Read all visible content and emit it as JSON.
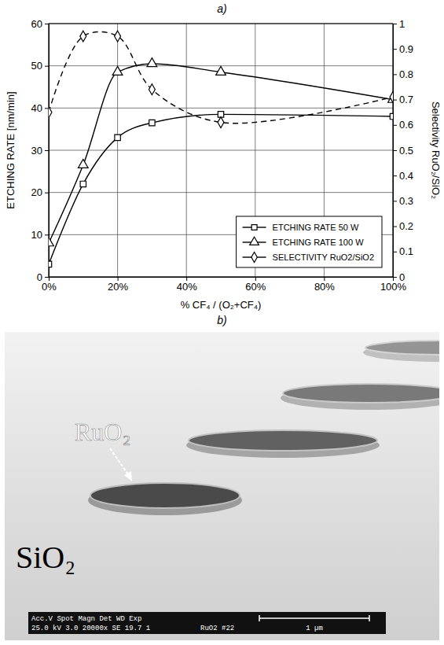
{
  "panel_labels": [
    "a)",
    "b)"
  ],
  "chart_data": {
    "type": "line",
    "x_label": "% CF₄ / (O₂+CF₄)",
    "y_label": "ETCHING RATE [nm/min]",
    "y2_label": "Selectivity RuO₂/SiO₂",
    "x": [
      0,
      10,
      20,
      30,
      50,
      100
    ],
    "xlim": [
      0,
      100
    ],
    "xticks": [
      {
        "value": 0,
        "label": "0%"
      },
      {
        "value": 20,
        "label": "20%"
      },
      {
        "value": 40,
        "label": "40%"
      },
      {
        "value": 60,
        "label": "60%"
      },
      {
        "value": 80,
        "label": "80%"
      },
      {
        "value": 100,
        "label": "100%"
      }
    ],
    "ylim": [
      0,
      60
    ],
    "yticks": [
      0,
      10,
      20,
      30,
      40,
      50,
      60
    ],
    "y2lim": [
      0,
      1
    ],
    "y2ticks": [
      0,
      0.1,
      0.2,
      0.3,
      0.4,
      0.5,
      0.6,
      0.7,
      0.8,
      0.9,
      1
    ],
    "grid": true,
    "legend": "lower right",
    "series": [
      {
        "name": "ETCHING RATE 50 W",
        "color": "#000000",
        "marker": "square",
        "line_style": "solid",
        "values": [
          3,
          22,
          33,
          36.5,
          38.5,
          38
        ]
      },
      {
        "name": "ETCHING RATE 100 W",
        "color": "#000000",
        "marker": "triangle",
        "line_style": "solid",
        "values": [
          8,
          26.5,
          48.5,
          50.5,
          48.5,
          42
        ]
      },
      {
        "name": "SELECTIVITY RuO2/SiO2",
        "color": "#000000",
        "marker": "diamond",
        "line_style": "dashed",
        "axis": "y2",
        "values": [
          0.65,
          0.95,
          0.95,
          0.74,
          0.61,
          0.71
        ]
      }
    ]
  },
  "image": {
    "labels": [
      "RuO₂",
      "SiO₂"
    ],
    "info_header": "Acc.V  Spot  Magn   Det  WD  Exp",
    "info_values": "25.0 kV  3.0  20000x  SE  19.7  1",
    "sample": "RuO2 #22",
    "scale_bar": "1 µm"
  }
}
